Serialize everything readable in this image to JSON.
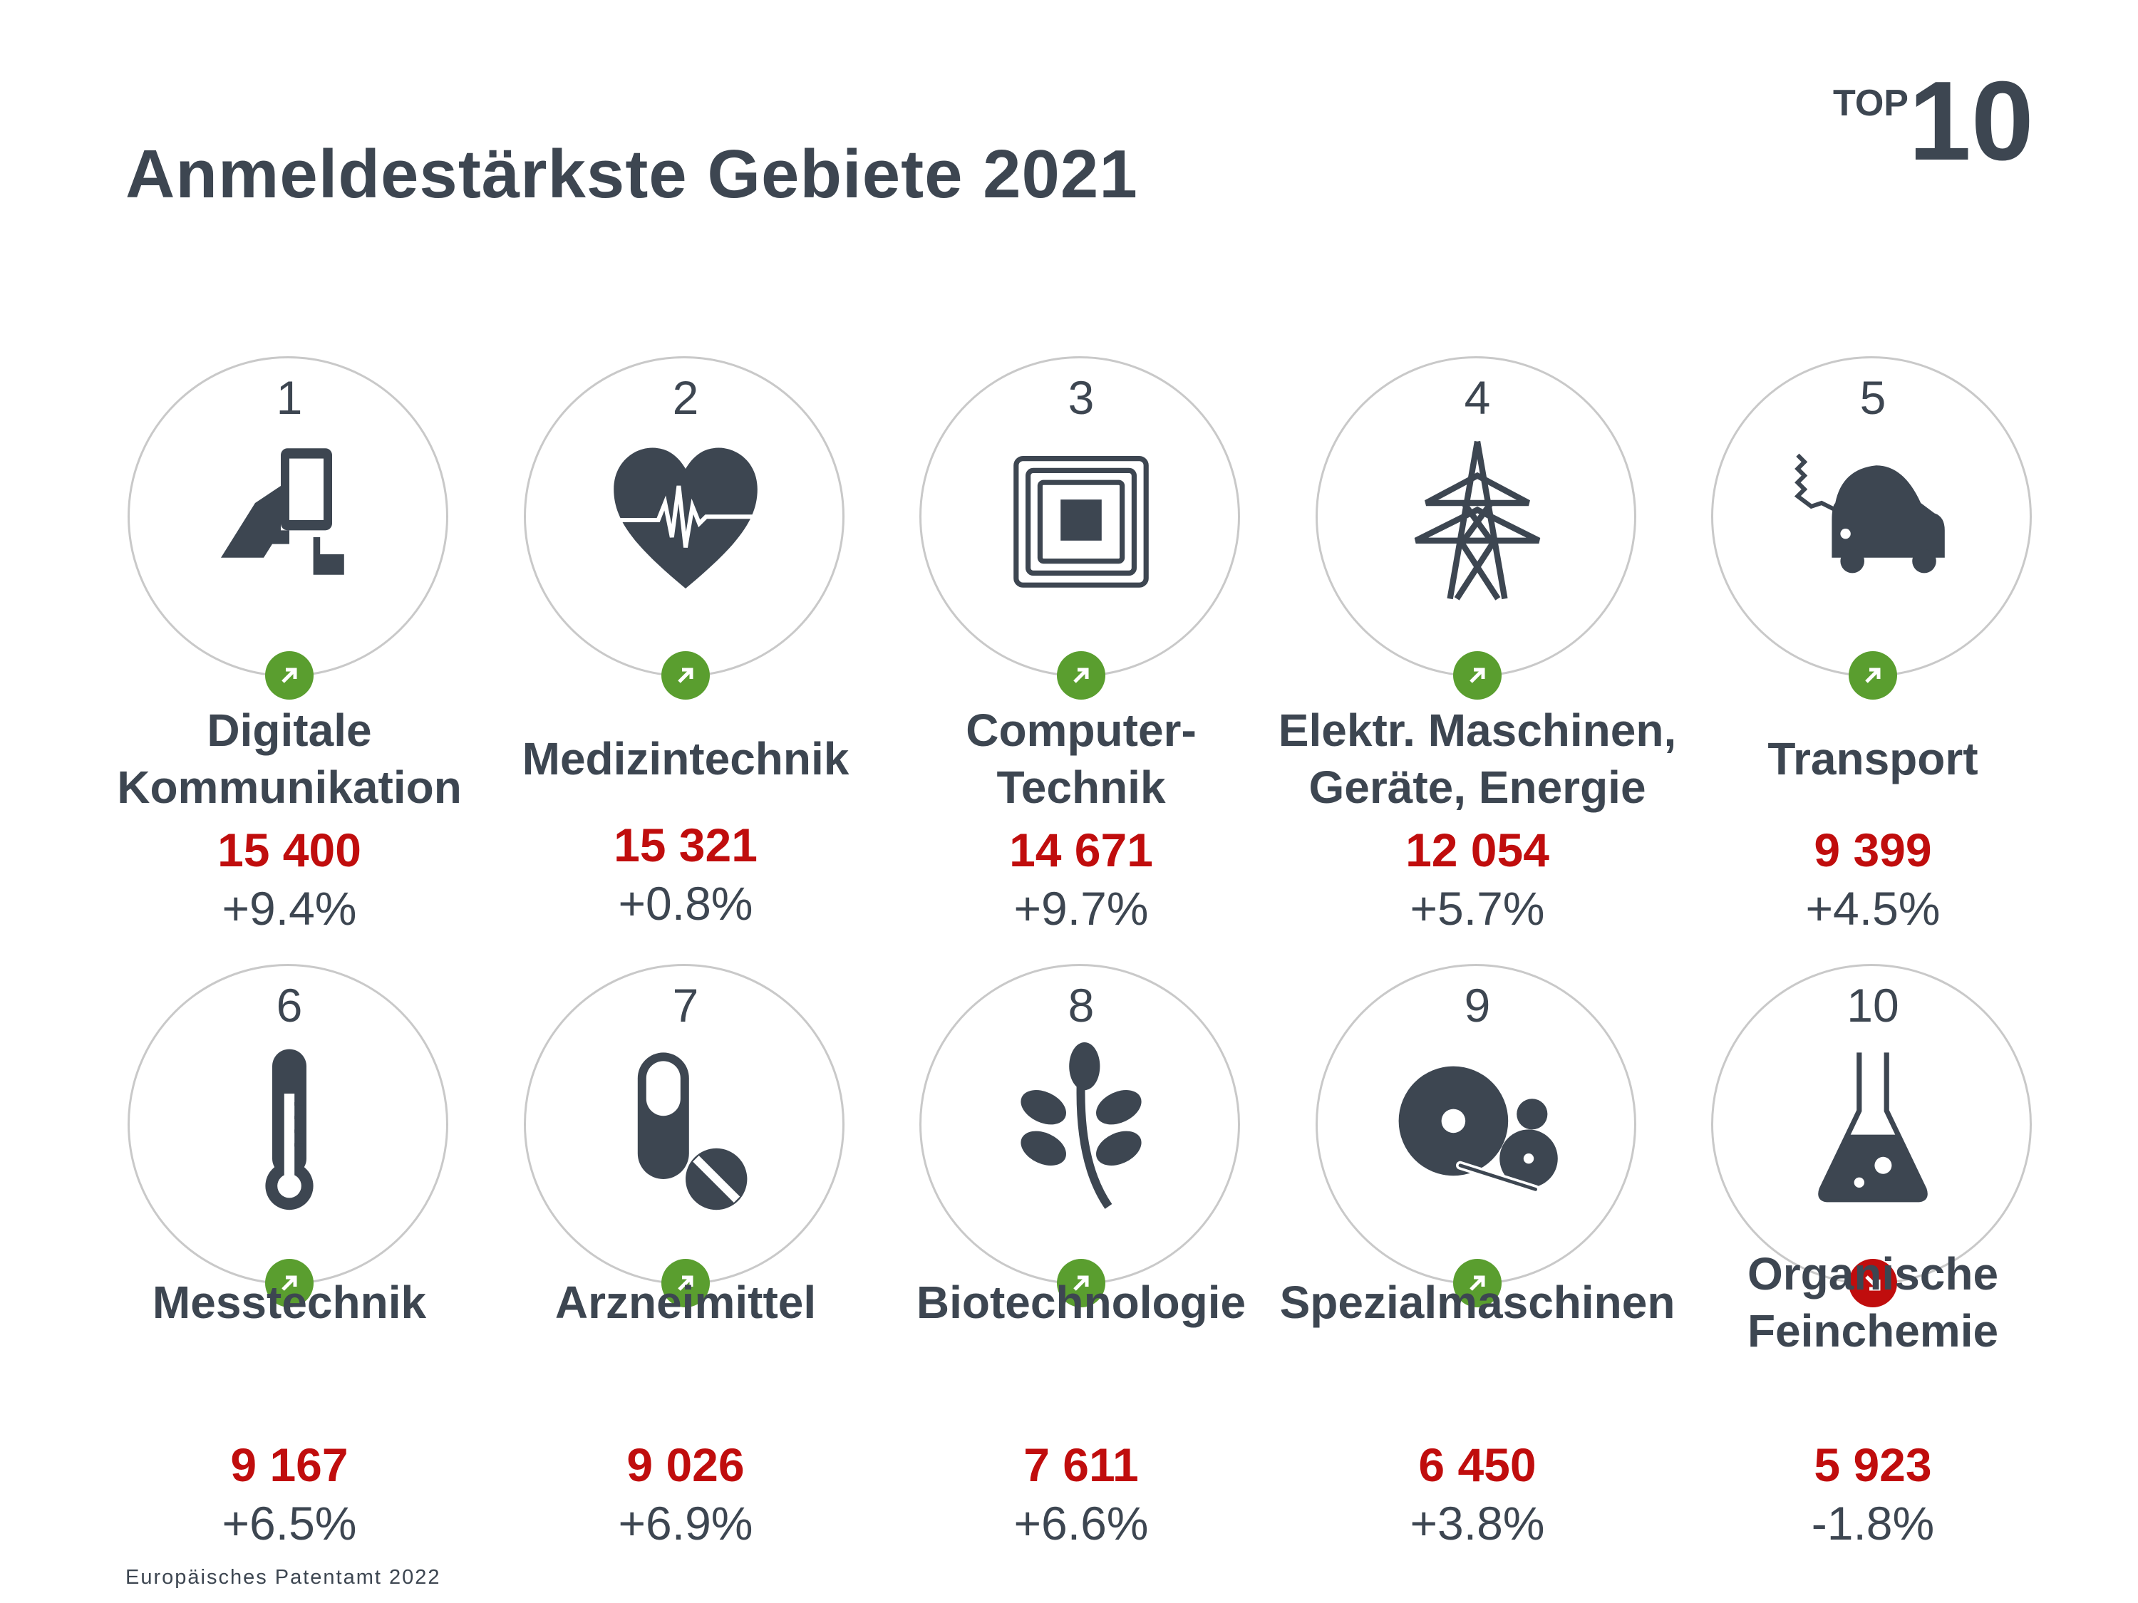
{
  "title": "Anmeldestärkste Gebiete 2021",
  "badge": {
    "top": "TOP",
    "number": "10"
  },
  "colors": {
    "text": "#3d4651",
    "value": "#c00d0d",
    "up": "#5a9e2f",
    "down": "#c00d0d"
  },
  "items": [
    {
      "rank": "1",
      "label": "Digitale\nKommunikation",
      "value": "15 400",
      "change": "+9.4%",
      "trend": "up",
      "icon": "tablet-hand-icon"
    },
    {
      "rank": "2",
      "label": "Medizintechnik",
      "value": "15 321",
      "change": "+0.8%",
      "trend": "up",
      "icon": "heart-pulse-icon"
    },
    {
      "rank": "3",
      "label": "Computer-\nTechnik",
      "value": "14 671",
      "change": "+9.7%",
      "trend": "up",
      "icon": "chip-icon"
    },
    {
      "rank": "4",
      "label": "Elektr. Maschinen,\nGeräte, Energie",
      "value": "12 054",
      "change": "+5.7%",
      "trend": "up",
      "icon": "power-pylon-icon"
    },
    {
      "rank": "5",
      "label": "Transport",
      "value": "9 399",
      "change": "+4.5%",
      "trend": "up",
      "icon": "electric-car-icon"
    },
    {
      "rank": "6",
      "label": "Messtechnik",
      "value": "9 167",
      "change": "+6.5%",
      "trend": "up",
      "icon": "thermometer-icon"
    },
    {
      "rank": "7",
      "label": "Arzneimittel",
      "value": "9 026",
      "change": "+6.9%",
      "trend": "up",
      "icon": "pills-icon"
    },
    {
      "rank": "8",
      "label": "Biotechnologie",
      "value": "7 611",
      "change": "+6.6%",
      "trend": "up",
      "icon": "plant-icon"
    },
    {
      "rank": "9",
      "label": "Spezialmaschinen",
      "value": "6 450",
      "change": "+3.8%",
      "trend": "up",
      "icon": "gears-icon"
    },
    {
      "rank": "10",
      "label": "Organische\nFeinchemie",
      "value": "5 923",
      "change": "-1.8%",
      "trend": "down",
      "icon": "flask-icon"
    }
  ],
  "footer": "Europäisches Patentamt 2022"
}
